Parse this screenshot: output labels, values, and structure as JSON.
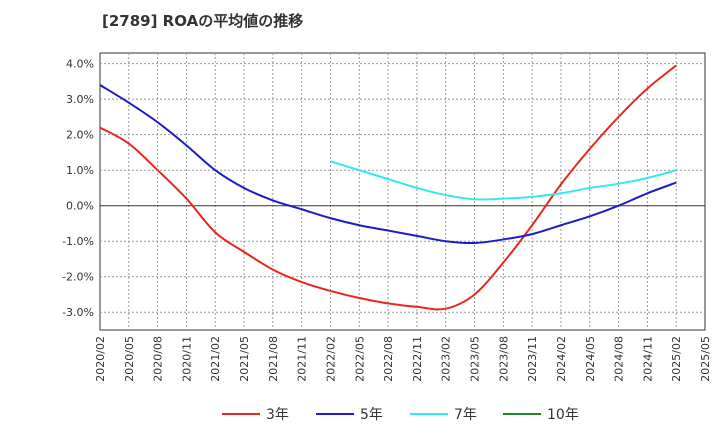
{
  "chart_data": {
    "type": "line",
    "title": "[2789]  ROAの平均値の推移",
    "xlabel": "",
    "ylabel": "",
    "ylim": [
      -3.5,
      4.3
    ],
    "grid": true,
    "legend_placement": "bottom",
    "x_ticks": [
      "2020/02",
      "2020/05",
      "2020/08",
      "2020/11",
      "2021/02",
      "2021/05",
      "2021/08",
      "2021/11",
      "2022/02",
      "2022/05",
      "2022/08",
      "2022/11",
      "2023/02",
      "2023/05",
      "2023/08",
      "2023/11",
      "2024/02",
      "2024/05",
      "2024/08",
      "2024/11",
      "2025/02",
      "2025/05"
    ],
    "y_ticks": [
      {
        "value": 4.0,
        "label": "4.0%"
      },
      {
        "value": 3.0,
        "label": "3.0%"
      },
      {
        "value": 2.0,
        "label": "2.0%"
      },
      {
        "value": 1.0,
        "label": "1.0%"
      },
      {
        "value": 0.0,
        "label": "0.0%"
      },
      {
        "value": -1.0,
        "label": "-1.0%"
      },
      {
        "value": -2.0,
        "label": "-2.0%"
      },
      {
        "value": -3.0,
        "label": "-3.0%"
      }
    ],
    "series": [
      {
        "name": "3年",
        "color": "#e8281f",
        "values": [
          2.2,
          1.75,
          1.0,
          0.2,
          -0.75,
          -1.3,
          -1.8,
          -2.15,
          -2.4,
          -2.6,
          -2.75,
          -2.85,
          -2.9,
          -2.5,
          -1.6,
          -0.55,
          0.6,
          1.6,
          2.5,
          3.3,
          3.95,
          null
        ]
      },
      {
        "name": "5年",
        "color": "#1d1dc8",
        "values": [
          3.4,
          2.9,
          2.35,
          1.7,
          1.0,
          0.5,
          0.15,
          -0.1,
          -0.35,
          -0.55,
          -0.7,
          -0.85,
          -1.0,
          -1.05,
          -0.95,
          -0.8,
          -0.55,
          -0.3,
          0.0,
          0.35,
          0.65,
          null
        ]
      },
      {
        "name": "7年",
        "color": "#33e8ed",
        "values": [
          null,
          null,
          null,
          null,
          null,
          null,
          null,
          null,
          1.25,
          1.0,
          0.75,
          0.5,
          0.3,
          0.18,
          0.2,
          0.25,
          0.35,
          0.5,
          0.62,
          0.78,
          1.0,
          null
        ]
      },
      {
        "name": "10年",
        "color": "#1f8a1f",
        "values": [
          null,
          null,
          null,
          null,
          null,
          null,
          null,
          null,
          null,
          null,
          null,
          null,
          null,
          null,
          null,
          null,
          null,
          null,
          null,
          null,
          null,
          null
        ]
      }
    ]
  }
}
